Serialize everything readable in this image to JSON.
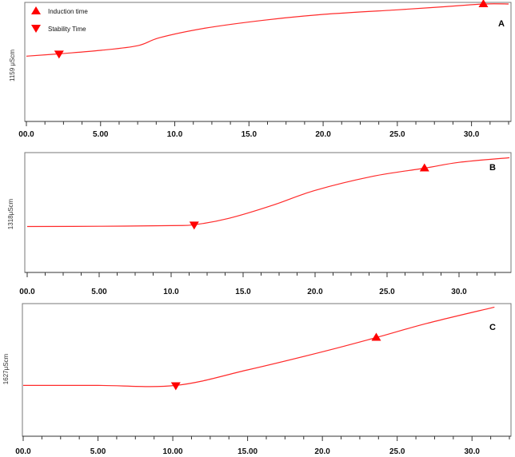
{
  "chart_data": [
    {
      "type": "line",
      "panel_label": "A",
      "ylabel": "1159 μScm",
      "xlim": [
        0,
        32.5
      ],
      "ticks": [
        "00.0",
        "5.00",
        "10.0",
        "15.0",
        "20.0",
        "25.0",
        "30.0"
      ],
      "tick_values": [
        0,
        5,
        10,
        15,
        20,
        25,
        30
      ],
      "color": "#ff2a2a",
      "legend": [
        {
          "label": "Induction time",
          "marker": "triangle-up"
        },
        {
          "label": "Stability Time",
          "marker": "triangle-down"
        }
      ],
      "series": [
        {
          "x": [
            0,
            2.2,
            5,
            7.5,
            9,
            12,
            16,
            20,
            25,
            28,
            30.8,
            32.5
          ],
          "y": [
            0.55,
            0.57,
            0.6,
            0.64,
            0.71,
            0.79,
            0.86,
            0.91,
            0.95,
            0.975,
            1.0,
            1.0
          ]
        }
      ],
      "markers": {
        "stability_time": {
          "x": 2.2,
          "y": 0.57
        },
        "induction_time": {
          "x": 30.8,
          "y": 1.0
        }
      }
    },
    {
      "type": "line",
      "panel_label": "B",
      "ylabel": "1318μScm",
      "xlim": [
        0,
        33.5
      ],
      "ticks": [
        "00.0",
        "5.00",
        "10.0",
        "15.0",
        "20.0",
        "25.0",
        "30.0"
      ],
      "tick_values": [
        0,
        5,
        10,
        15,
        20,
        25,
        30
      ],
      "color": "#ff2a2a",
      "series": [
        {
          "x": [
            0,
            5,
            10,
            11.6,
            14,
            17,
            20,
            24,
            27.6,
            30,
            33.5
          ],
          "y": [
            0.38,
            0.382,
            0.388,
            0.395,
            0.45,
            0.56,
            0.69,
            0.81,
            0.88,
            0.93,
            0.97
          ]
        }
      ],
      "markers": {
        "stability_time": {
          "x": 11.6,
          "y": 0.395
        },
        "induction_time": {
          "x": 27.6,
          "y": 0.88
        }
      }
    },
    {
      "type": "line",
      "panel_label": "C",
      "ylabel": "1627μScm",
      "xlim": [
        0,
        32.5
      ],
      "ticks": [
        "00.0",
        "5.00",
        "10.00",
        "15.00",
        "20.0",
        "25.0",
        "30.0"
      ],
      "tick_values": [
        0,
        5,
        10,
        15,
        20,
        25,
        30
      ],
      "color": "#ff2a2a",
      "series": [
        {
          "x": [
            0,
            5,
            10.2,
            15,
            20,
            23.6,
            27,
            31.5
          ],
          "y": [
            0.38,
            0.38,
            0.38,
            0.5,
            0.64,
            0.75,
            0.86,
            0.985
          ]
        }
      ],
      "markers": {
        "stability_time": {
          "x": 10.2,
          "y": 0.38
        },
        "induction_time": {
          "x": 23.6,
          "y": 0.75
        }
      }
    }
  ]
}
